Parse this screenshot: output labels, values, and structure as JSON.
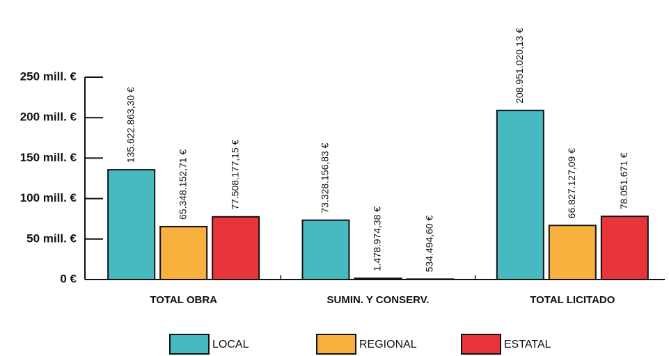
{
  "chart_data": {
    "type": "bar",
    "categories": [
      "TOTAL OBRA",
      "SUMIN. Y CONSERV.",
      "TOTAL LICITADO"
    ],
    "series": [
      {
        "name": "LOCAL",
        "color": "#47b9c1",
        "values": [
          135622863.3,
          73328156.83,
          208951020.13
        ],
        "value_labels": [
          "135.622.863,30 €",
          "73.328.156,83 €",
          "208.951.020,13 €"
        ]
      },
      {
        "name": "REGIONAL",
        "color": "#f8b03e",
        "values": [
          65348152.71,
          1478974.38,
          66827127.09
        ],
        "value_labels": [
          "65.348.152,71 €",
          "1.478.974,38 €",
          "66.827.127,09 €"
        ]
      },
      {
        "name": "ESTATAL",
        "color": "#e8353a",
        "values": [
          77508177.15,
          534494.6,
          78051671
        ],
        "value_labels": [
          "77.508.177,15 €",
          "534.494,60 €",
          "78.051.671 €"
        ]
      }
    ],
    "ylim": [
      0,
      250000000
    ],
    "yticks": [
      {
        "value": 0,
        "label": "0 €"
      },
      {
        "value": 50000000,
        "label": "50 mill. €"
      },
      {
        "value": 100000000,
        "label": "100 mill. €"
      },
      {
        "value": 150000000,
        "label": "150 mill. €"
      },
      {
        "value": 200000000,
        "label": "200 mill. €"
      },
      {
        "value": 250000000,
        "label": "250 mill. €"
      }
    ],
    "legend": "bottom"
  }
}
